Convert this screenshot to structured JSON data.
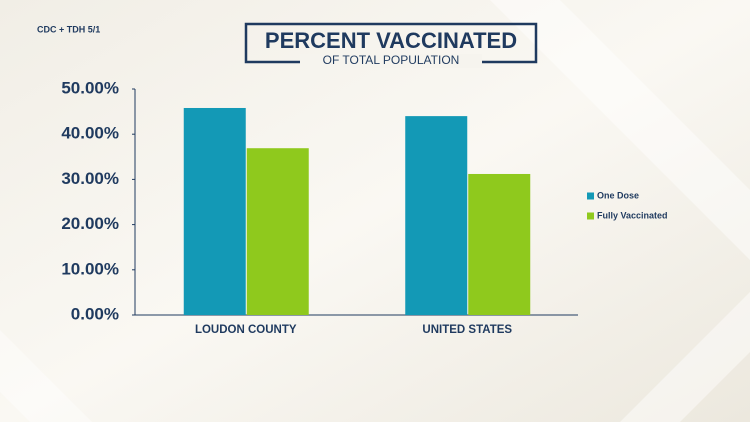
{
  "chart_data": {
    "type": "bar",
    "title": "PERCENT VACCINATED",
    "subtitle": "OF TOTAL POPULATION",
    "source": "CDC + TDH 5/1",
    "categories": [
      "LOUDON COUNTY",
      "UNITED STATES"
    ],
    "series": [
      {
        "name": "One Dose",
        "color": "#1399b6",
        "values": [
          45.8,
          44.0
        ]
      },
      {
        "name": "Fully Vaccinated",
        "color": "#8fc91d",
        "values": [
          36.9,
          31.2
        ]
      }
    ],
    "ylim": [
      0,
      50
    ],
    "yticks": [
      {
        "value": 0,
        "label": "0.00%"
      },
      {
        "value": 10,
        "label": "10.00%"
      },
      {
        "value": 20,
        "label": "20.00%"
      },
      {
        "value": 30,
        "label": "30.00%"
      },
      {
        "value": 40,
        "label": "40.00%"
      },
      {
        "value": 50,
        "label": "50.00%"
      }
    ],
    "grid": false,
    "legend": "right"
  }
}
